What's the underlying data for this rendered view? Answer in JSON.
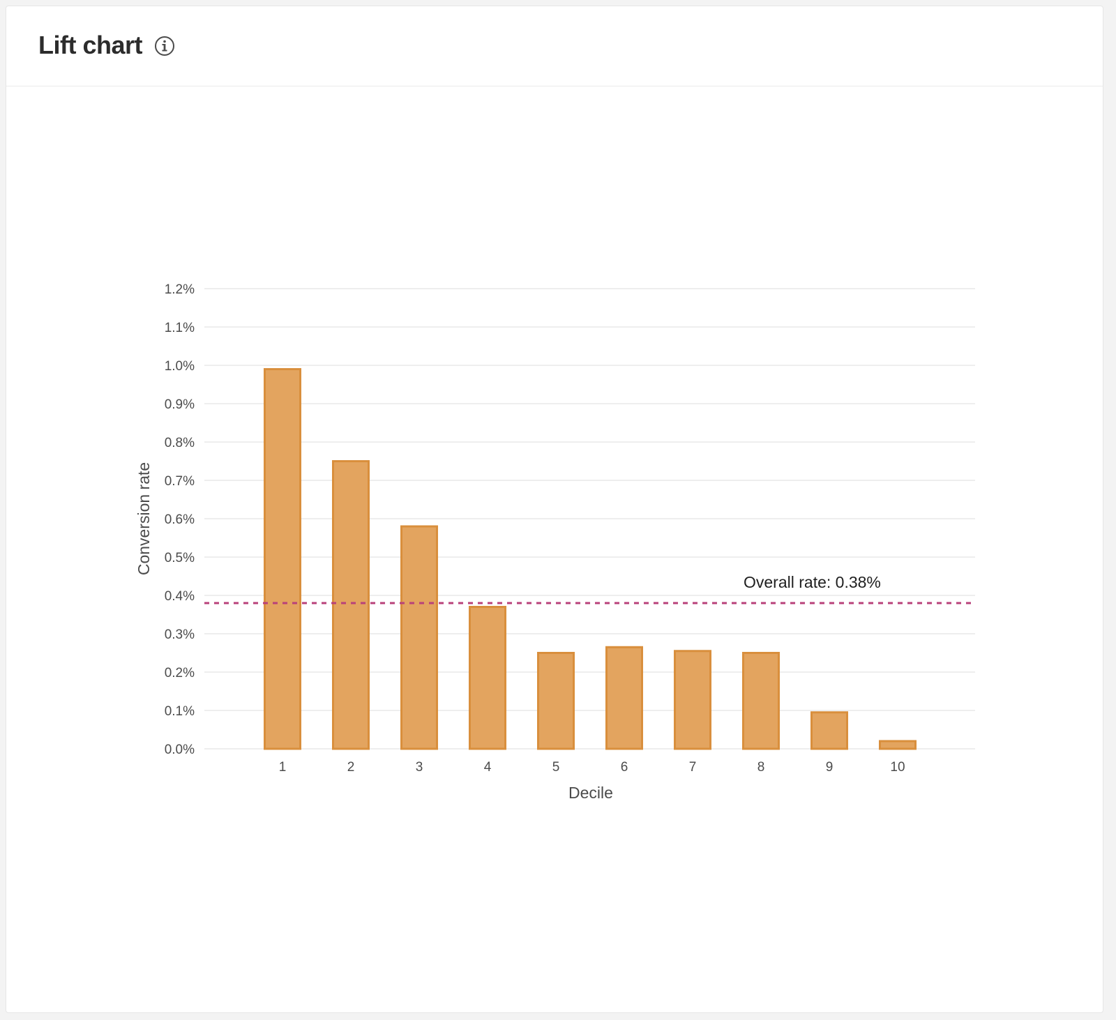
{
  "header": {
    "title": "Lift chart",
    "info_icon": "info-icon"
  },
  "colors": {
    "bar_fill": "#e3a45f",
    "bar_stroke": "#d98f3d",
    "reference_line": "#b8417a",
    "gridline": "#e8e8e8"
  },
  "chart_data": {
    "type": "bar",
    "categories": [
      "1",
      "2",
      "3",
      "4",
      "5",
      "6",
      "7",
      "8",
      "9",
      "10"
    ],
    "values": [
      0.99,
      0.75,
      0.58,
      0.37,
      0.25,
      0.265,
      0.255,
      0.25,
      0.095,
      0.02
    ],
    "xlabel": "Decile",
    "ylabel": "Conversion rate",
    "ylim": [
      0,
      1.2
    ],
    "yticks": [
      "0.0%",
      "0.1%",
      "0.2%",
      "0.3%",
      "0.4%",
      "0.5%",
      "0.6%",
      "0.7%",
      "0.8%",
      "0.9%",
      "1.0%",
      "1.1%",
      "1.2%"
    ],
    "ytick_values": [
      0,
      0.1,
      0.2,
      0.3,
      0.4,
      0.5,
      0.6,
      0.7,
      0.8,
      0.9,
      1.0,
      1.1,
      1.2
    ],
    "grid": true,
    "reference_line": {
      "value": 0.38,
      "label": "Overall rate: 0.38%",
      "style": "dashed"
    }
  }
}
